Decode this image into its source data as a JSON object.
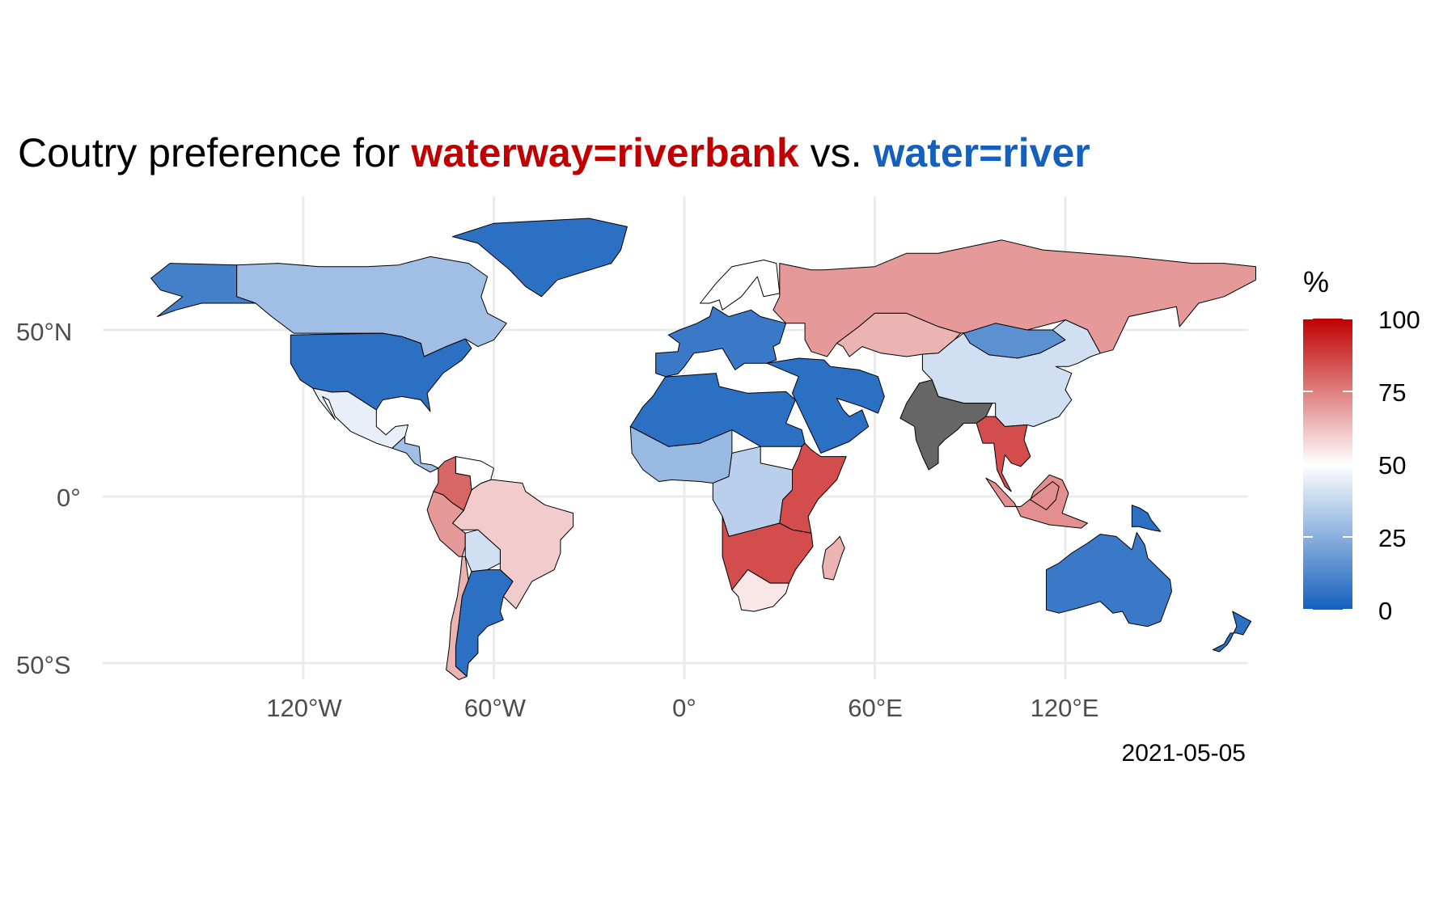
{
  "title": {
    "prefix": "Coutry preference for ",
    "tag_a": "waterway=riverbank",
    "middle": " vs. ",
    "tag_b": "water=river"
  },
  "caption": "2021-05-05",
  "x_ticks": [
    "120°W",
    "60°W",
    "0°",
    "60°E",
    "120°E"
  ],
  "y_ticks": [
    "50°N",
    "0°",
    "50°S"
  ],
  "legend": {
    "title": "%",
    "labels": [
      "100",
      "75",
      "50",
      "25",
      "0"
    ],
    "colors": {
      "low": "#1560bd",
      "mid": "#ffffff",
      "high": "#c00000",
      "na": "#666666"
    }
  },
  "chart_data": {
    "type": "choropleth",
    "variable": "share of river areas tagged waterway=riverbank (%)",
    "xlim": [
      -180,
      180
    ],
    "ylim": [
      -58,
      85
    ],
    "grid": true,
    "legend_position": "right",
    "regions": [
      {
        "name": "Greenland",
        "value": 5
      },
      {
        "name": "Canada",
        "value": 30
      },
      {
        "name": "Alaska",
        "value": 10
      },
      {
        "name": "United States",
        "value": 5
      },
      {
        "name": "Mexico",
        "value": 45
      },
      {
        "name": "Central America",
        "value": 30
      },
      {
        "name": "Colombia",
        "value": 80
      },
      {
        "name": "Venezuela",
        "value": 50
      },
      {
        "name": "Peru",
        "value": 70
      },
      {
        "name": "Brazil",
        "value": 60
      },
      {
        "name": "Bolivia",
        "value": 40
      },
      {
        "name": "Argentina",
        "value": 5
      },
      {
        "name": "Chile",
        "value": 65
      },
      {
        "name": "Western Europe",
        "value": 8
      },
      {
        "name": "Scandinavia",
        "value": 50
      },
      {
        "name": "Russia",
        "value": 70
      },
      {
        "name": "Kazakhstan",
        "value": 65
      },
      {
        "name": "Mongolia",
        "value": 15
      },
      {
        "name": "China",
        "value": 40
      },
      {
        "name": "India",
        "value": null
      },
      {
        "name": "Southeast Asia",
        "value": 85
      },
      {
        "name": "Indonesia",
        "value": 72
      },
      {
        "name": "Middle East",
        "value": 5
      },
      {
        "name": "North Africa",
        "value": 5
      },
      {
        "name": "West Africa",
        "value": 28
      },
      {
        "name": "Central Africa",
        "value": 35
      },
      {
        "name": "East Africa",
        "value": 85
      },
      {
        "name": "Southern Africa",
        "value": 85
      },
      {
        "name": "South Africa",
        "value": 55
      },
      {
        "name": "Madagascar",
        "value": 65
      },
      {
        "name": "Australia",
        "value": 8
      },
      {
        "name": "New Zealand",
        "value": 5
      },
      {
        "name": "Papua New Guinea",
        "value": 5
      }
    ]
  }
}
